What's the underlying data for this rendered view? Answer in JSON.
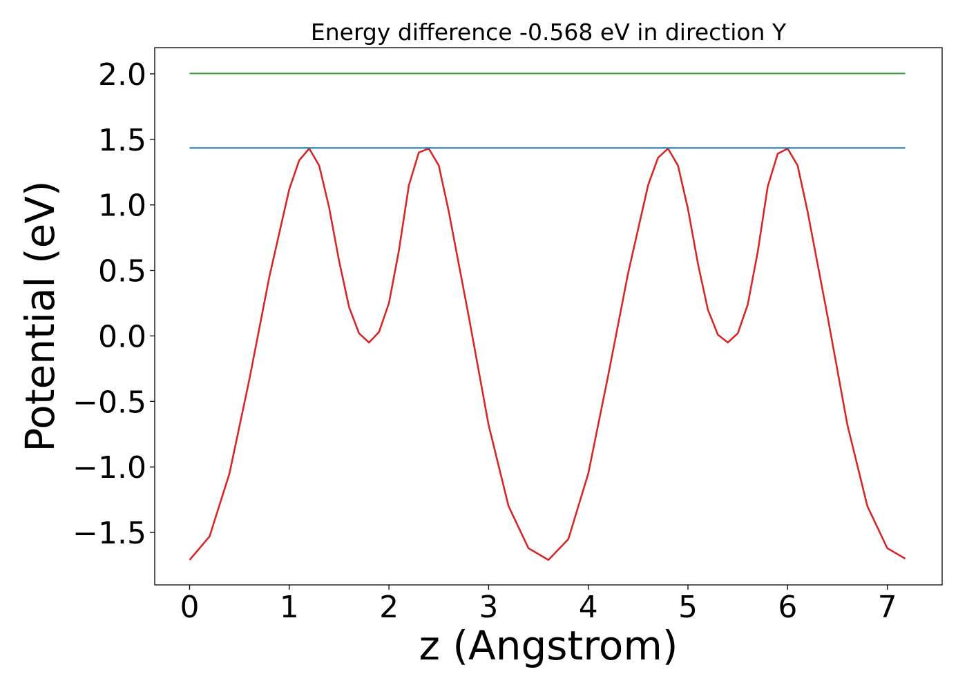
{
  "chart_data": {
    "type": "line",
    "title": "Energy difference -0.568 eV in direction Y",
    "xlabel": "z (Angstrom)",
    "ylabel": "Potential (eV)",
    "xlim": [
      -0.35,
      7.55
    ],
    "ylim": [
      -1.9,
      2.2
    ],
    "x_ticks": [
      0,
      1,
      2,
      3,
      4,
      5,
      6,
      7
    ],
    "x_tick_labels": [
      "0",
      "1",
      "2",
      "3",
      "4",
      "5",
      "6",
      "7"
    ],
    "y_ticks": [
      2.0,
      1.5,
      1.0,
      0.5,
      0.0,
      -0.5,
      -1.0,
      -1.5
    ],
    "y_tick_labels": [
      "2.0",
      "1.5",
      "1.0",
      "0.5",
      "0.0",
      "−0.5",
      "−1.0",
      "−1.5"
    ],
    "grid": false,
    "series": [
      {
        "color": "#d62728",
        "x": [
          0.0,
          0.2,
          0.4,
          0.6,
          0.8,
          1.0,
          1.1,
          1.2,
          1.3,
          1.4,
          1.5,
          1.6,
          1.7,
          1.8,
          1.9,
          2.0,
          2.1,
          2.2,
          2.3,
          2.4,
          2.5,
          2.6,
          2.8,
          3.0,
          3.2,
          3.4,
          3.6,
          3.8,
          4.0,
          4.2,
          4.4,
          4.6,
          4.7,
          4.8,
          4.9,
          5.0,
          5.1,
          5.2,
          5.3,
          5.4,
          5.5,
          5.6,
          5.7,
          5.8,
          5.9,
          6.0,
          6.1,
          6.2,
          6.4,
          6.6,
          6.8,
          7.0,
          7.18
        ],
        "y": [
          -1.71,
          -1.53,
          -1.05,
          -0.33,
          0.45,
          1.12,
          1.34,
          1.43,
          1.3,
          0.98,
          0.57,
          0.22,
          0.02,
          -0.05,
          0.03,
          0.25,
          0.65,
          1.15,
          1.4,
          1.43,
          1.3,
          0.95,
          0.15,
          -0.68,
          -1.3,
          -1.62,
          -1.71,
          -1.55,
          -1.05,
          -0.3,
          0.48,
          1.15,
          1.36,
          1.43,
          1.3,
          0.97,
          0.55,
          0.2,
          0.01,
          -0.05,
          0.02,
          0.24,
          0.64,
          1.14,
          1.39,
          1.43,
          1.3,
          0.95,
          0.15,
          -0.68,
          -1.3,
          -1.62,
          -1.7
        ]
      },
      {
        "color": "#1f77b4",
        "x": [
          0.0,
          7.18
        ],
        "y": [
          1.435,
          1.435
        ]
      },
      {
        "color": "#2ca02c",
        "x": [
          0.0,
          7.18
        ],
        "y": [
          2.003,
          2.003
        ]
      }
    ]
  }
}
